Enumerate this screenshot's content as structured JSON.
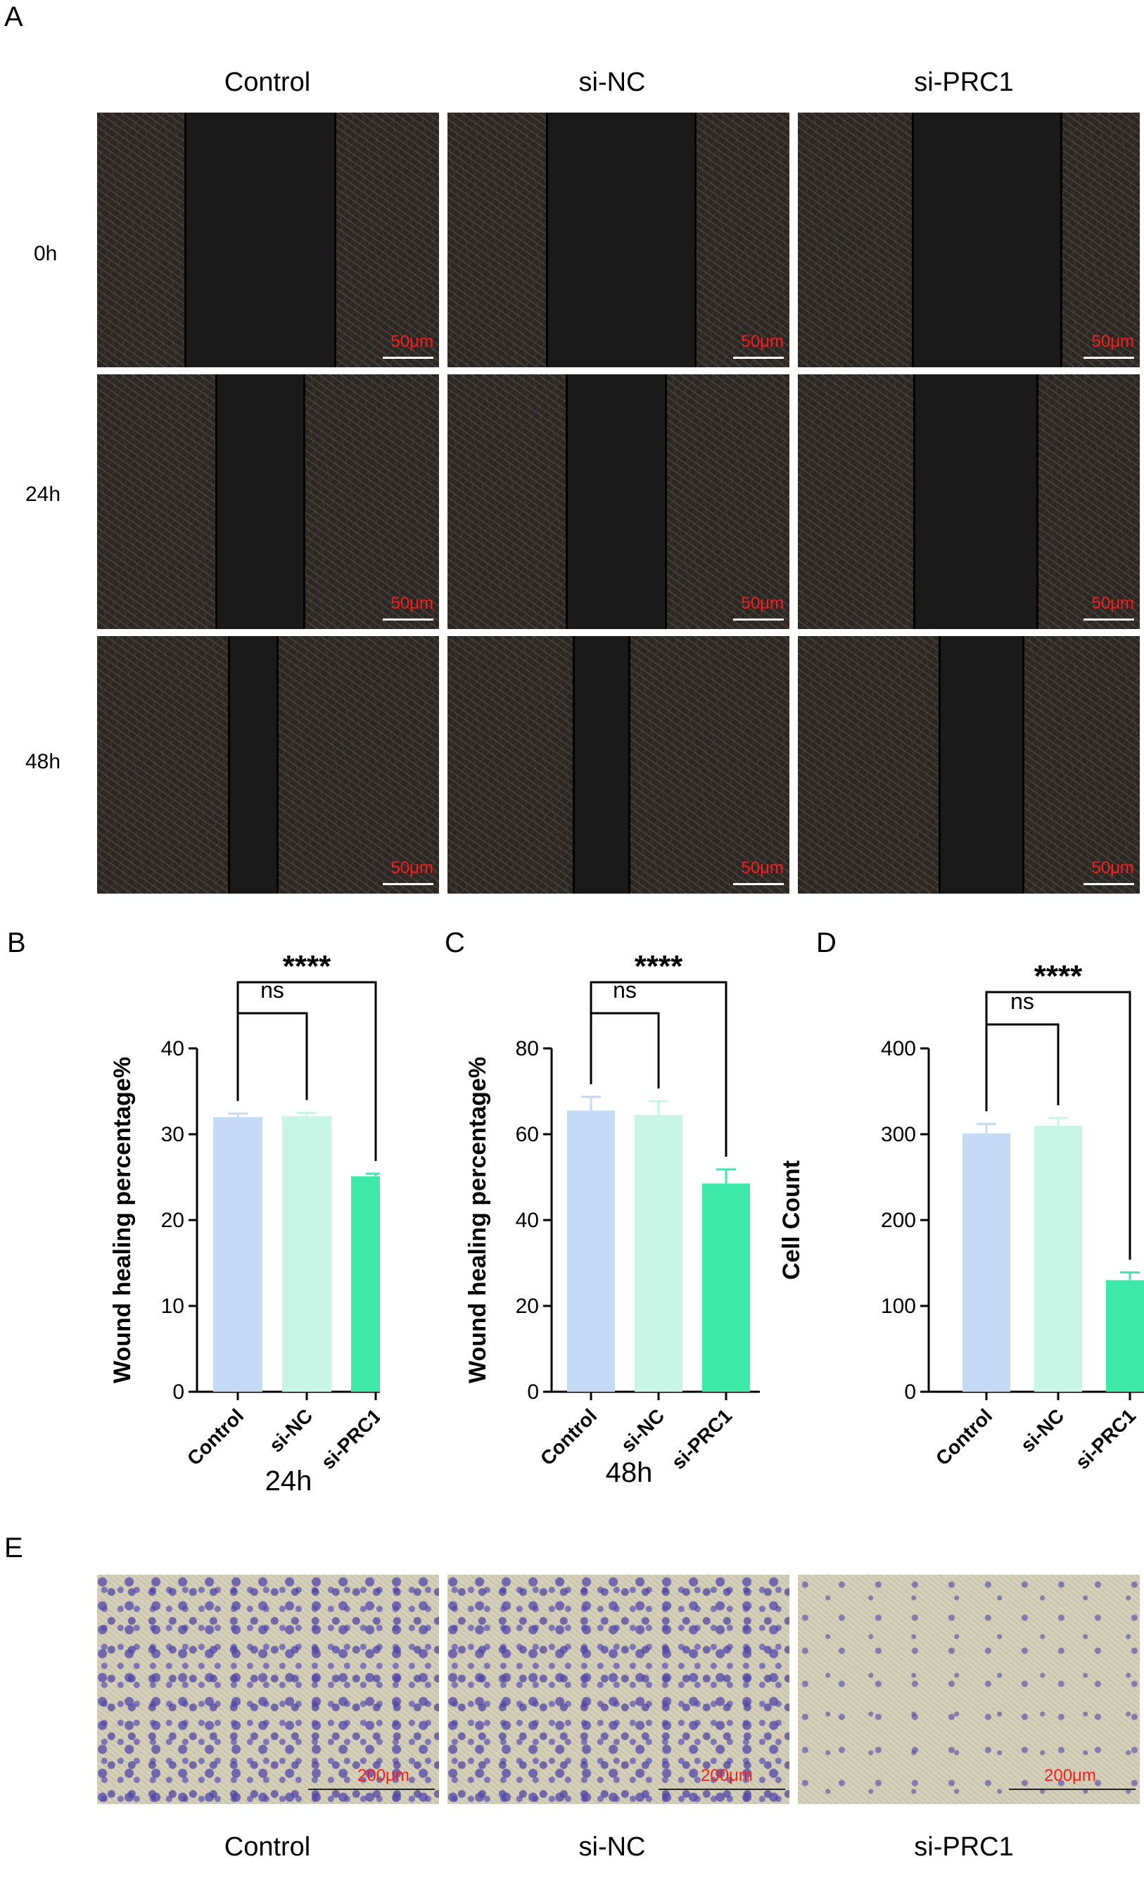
{
  "panels": {
    "a": "A",
    "b": "B",
    "c": "C",
    "d": "D",
    "e": "E"
  },
  "wound_assay": {
    "columns": [
      "Control",
      "si-NC",
      "si-PRC1"
    ],
    "rows": [
      "0h",
      "24h",
      "48h"
    ],
    "scale_label": "50μm"
  },
  "transwell": {
    "columns": [
      "Control",
      "si-NC",
      "si-PRC1"
    ],
    "scale_label": "200μm"
  },
  "chart_data": [
    {
      "id": "B",
      "type": "bar",
      "categories": [
        "Control",
        "si-NC",
        "si-PRC1"
      ],
      "values": [
        32.0,
        32.1,
        25.1
      ],
      "errors": [
        0.4,
        0.4,
        0.3
      ],
      "colors": [
        "#c5daf5",
        "#c8f5e6",
        "#3de8a8"
      ],
      "ylabel": "Wound healing percentage%",
      "xlabel": "24h",
      "ylim": [
        0,
        40
      ],
      "yticks": [
        "0",
        "10",
        "20",
        "30",
        "40"
      ],
      "sig_near": "ns",
      "sig_far": "****"
    },
    {
      "id": "C",
      "type": "bar",
      "categories": [
        "Control",
        "si-NC",
        "si-PRC1"
      ],
      "values": [
        65.5,
        64.5,
        48.5
      ],
      "errors": [
        3.2,
        3.2,
        3.3
      ],
      "colors": [
        "#c5daf5",
        "#c8f5e6",
        "#3de8a8"
      ],
      "ylabel": "Wound healing percentage%",
      "xlabel": "48h",
      "ylim": [
        0,
        80
      ],
      "yticks": [
        "0",
        "20",
        "40",
        "60",
        "80"
      ],
      "sig_near": "ns",
      "sig_far": "****"
    },
    {
      "id": "D",
      "type": "bar",
      "categories": [
        "Control",
        "si-NC",
        "si-PRC1"
      ],
      "values": [
        301,
        310,
        130
      ],
      "errors": [
        11,
        9,
        9
      ],
      "colors": [
        "#c5daf5",
        "#c8f5e6",
        "#3de8a8"
      ],
      "ylabel": "Cell Count",
      "xlabel": "",
      "ylim": [
        0,
        400
      ],
      "yticks": [
        "0",
        "100",
        "200",
        "300",
        "400"
      ],
      "sig_near": "ns",
      "sig_far": "****"
    }
  ]
}
